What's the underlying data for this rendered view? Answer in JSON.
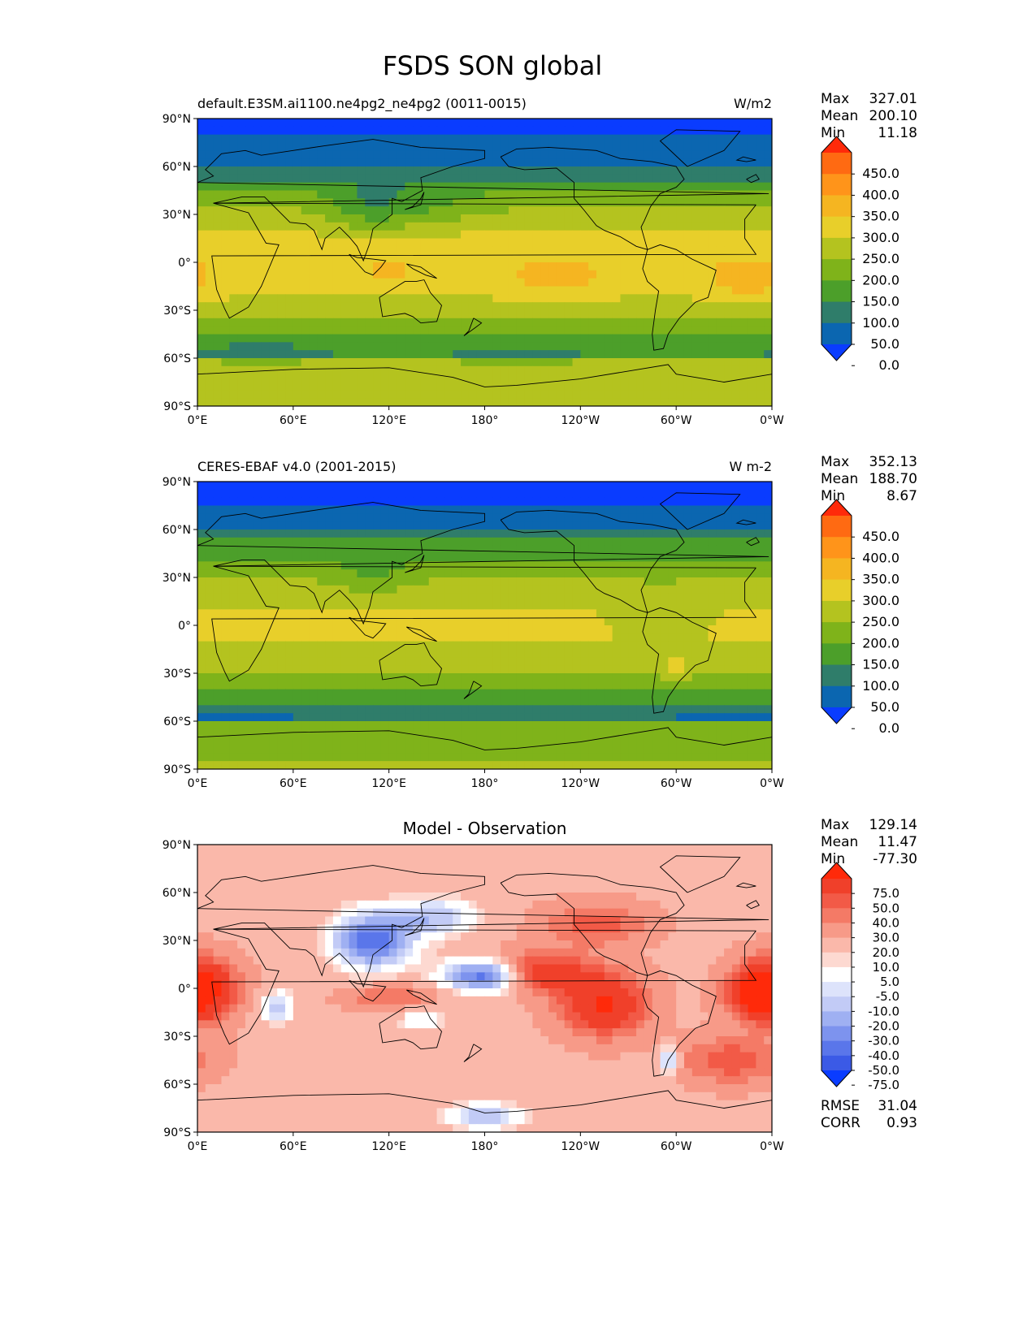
{
  "figure": {
    "title": "FSDS SON global"
  },
  "axes": {
    "lat_labels": [
      "90°N",
      "60°N",
      "30°N",
      "0°",
      "30°S",
      "60°S",
      "90°S"
    ],
    "lon_labels": [
      "0°E",
      "60°E",
      "120°E",
      "180°",
      "120°W",
      "60°W",
      "0°W"
    ]
  },
  "panels": [
    {
      "left_title": "default.E3SM.ai1100.ne4pg2_ne4pg2 (0011-0015)",
      "center_title": "",
      "right_title": "W/m2",
      "stats": [
        {
          "label": "Max",
          "value": "327.01"
        },
        {
          "label": "Mean",
          "value": "200.10"
        },
        {
          "label": "Min",
          "value": "11.18"
        }
      ],
      "colorbar": {
        "labels": [
          "450.0",
          "400.0",
          "350.0",
          "300.0",
          "250.0",
          "200.0",
          "150.0",
          "100.0",
          "50.0",
          "0.0"
        ],
        "colors": [
          "#ff2a0a",
          "#ff6a12",
          "#ff941a",
          "#f5b521",
          "#e8cf2a",
          "#b4c31f",
          "#7fb31a",
          "#4c9f2a",
          "#2f7d6a",
          "#0b66b0",
          "#0a3cff"
        ]
      },
      "footer": []
    },
    {
      "left_title": "CERES-EBAF v4.0 (2001-2015)",
      "center_title": "",
      "right_title": "W m-2",
      "stats": [
        {
          "label": "Max",
          "value": "352.13"
        },
        {
          "label": "Mean",
          "value": "188.70"
        },
        {
          "label": "Min",
          "value": "8.67"
        }
      ],
      "colorbar": {
        "labels": [
          "450.0",
          "400.0",
          "350.0",
          "300.0",
          "250.0",
          "200.0",
          "150.0",
          "100.0",
          "50.0",
          "0.0"
        ],
        "colors": [
          "#ff2a0a",
          "#ff6a12",
          "#ff941a",
          "#f5b521",
          "#e8cf2a",
          "#b4c31f",
          "#7fb31a",
          "#4c9f2a",
          "#2f7d6a",
          "#0b66b0",
          "#0a3cff"
        ]
      },
      "footer": []
    },
    {
      "left_title": "",
      "center_title": "Model - Observation",
      "right_title": "",
      "stats": [
        {
          "label": "Max",
          "value": "129.14"
        },
        {
          "label": "Mean",
          "value": "11.47"
        },
        {
          "label": "Min",
          "value": "-77.30"
        }
      ],
      "colorbar": {
        "labels": [
          "75.0",
          "50.0",
          "40.0",
          "30.0",
          "20.0",
          "10.0",
          "5.0",
          "-5.0",
          "-10.0",
          "-20.0",
          "-30.0",
          "-40.0",
          "-50.0",
          "-75.0"
        ],
        "colors": [
          "#ff2a0a",
          "#f0402a",
          "#f25a47",
          "#f47a66",
          "#f79a88",
          "#fab8aa",
          "#fdd9d1",
          "#ffffff",
          "#dde3fb",
          "#c2cbf6",
          "#9fb0f2",
          "#7d93ee",
          "#5a76ea",
          "#3b5ae6",
          "#0a3cff"
        ]
      },
      "footer": [
        {
          "label": "RMSE",
          "value": "31.04"
        },
        {
          "label": "CORR",
          "value": "0.93"
        }
      ]
    }
  ]
}
